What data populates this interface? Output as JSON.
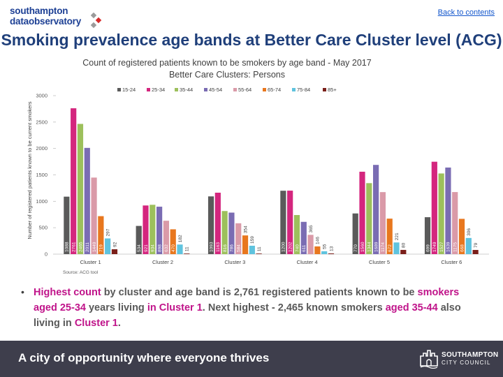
{
  "header": {
    "logo_line1": "southampton",
    "logo_line2": "dataobservatory",
    "back_link": "Back to contents",
    "title": "Smoking prevalence age bands at Better Care Cluster level (ACG)"
  },
  "colors": {
    "title": "#1f3f7a",
    "highlight": "#c0148a",
    "footer_bg": "#3e3e4c"
  },
  "chart_data": {
    "type": "bar",
    "title_line1": "Count of registered patients known to be smokers by age band - May 2017",
    "title_line2": "Better Care Clusters: Persons",
    "ylabel": "Number of registered patients known to be current smokers",
    "xlabel": "",
    "ylim": [
      0,
      3000
    ],
    "yticks": [
      0,
      500,
      1000,
      1500,
      2000,
      2500,
      3000
    ],
    "categories": [
      "Cluster 1",
      "Cluster 2",
      "Cluster 3",
      "Cluster 4",
      "Cluster 5",
      "Cluster 6"
    ],
    "series": [
      {
        "name": "15-24",
        "color": "#5a5a5a",
        "values": [
          1088,
          534,
          1093,
          1200,
          770,
          699
        ]
      },
      {
        "name": "25-34",
        "color": "#d4267e",
        "values": [
          2761,
          921,
          1163,
          1202,
          1560,
          1749
        ]
      },
      {
        "name": "35-44",
        "color": "#9dc05c",
        "values": [
          2465,
          934,
          816,
          740,
          1344,
          1527
        ]
      },
      {
        "name": "45-54",
        "color": "#7a6cb3",
        "values": [
          2011,
          898,
          786,
          611,
          1689,
          1639
        ]
      },
      {
        "name": "55-64",
        "color": "#da9aa8",
        "values": [
          1449,
          632,
          584,
          365,
          1174,
          1175
        ]
      },
      {
        "name": "65-74",
        "color": "#e8771e",
        "values": [
          719,
          470,
          354,
          146,
          672,
          668
        ]
      },
      {
        "name": "75-84",
        "color": "#5fc3de",
        "values": [
          297,
          182,
          159,
          55,
          221,
          306
        ]
      },
      {
        "name": "85+",
        "color": "#7a1f1a",
        "values": [
          92,
          11,
          11,
          13,
          80,
          79
        ]
      }
    ],
    "value_labels": [
      [
        "1088",
        "2761",
        "2465",
        "2011",
        "1449",
        "719",
        "297",
        "92"
      ],
      [
        "534",
        "921",
        "934",
        "898",
        "632",
        "470",
        "182",
        "11"
      ],
      [
        "1093",
        "1163",
        "816",
        "786",
        "584",
        "354",
        "159",
        "11"
      ],
      [
        "1200",
        "1202",
        "740",
        "611",
        "365",
        "146",
        "55",
        "13"
      ],
      [
        "770",
        "1560",
        "1344",
        "1689",
        "1174",
        "672",
        "221",
        "80"
      ],
      [
        "699",
        "1749",
        "1527",
        "1639",
        "1175",
        "668",
        "306",
        "79"
      ]
    ],
    "source": "Source: ACG tool"
  },
  "bullet": {
    "p1": "Highest count",
    "p2": " by cluster and age band is 2,761 registered patients known to be ",
    "p3": "smokers aged 25-34",
    "p4": " years living ",
    "p5": "in Cluster 1",
    "p6": ". Next highest - 2,465 known smokers ",
    "p7": "aged 35-44",
    "p8": " also living in ",
    "p9": "Cluster 1",
    "p10": "."
  },
  "footer": {
    "tagline": "A city of opportunity where everyone thrives",
    "council_line1": "SOUTHAMPTON",
    "council_line2": "CITY COUNCIL"
  }
}
